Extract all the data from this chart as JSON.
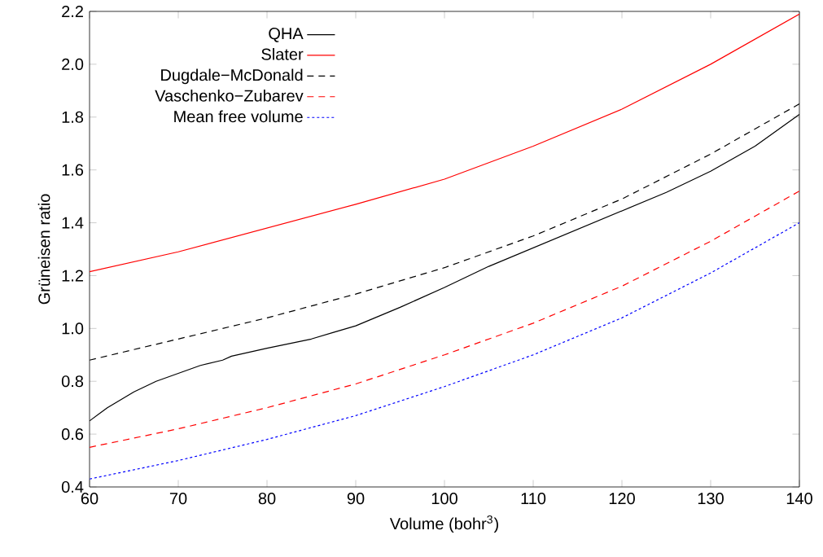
{
  "chart_data": {
    "type": "line",
    "xlabel": "Volume (bohr$^{3}$)",
    "ylabel": "Grüneisen ratio",
    "xlim": [
      60,
      140
    ],
    "ylim": [
      0.4,
      2.2
    ],
    "xticks": [
      60,
      70,
      80,
      90,
      100,
      110,
      120,
      130,
      140
    ],
    "yticks": [
      0.4,
      0.6,
      0.8,
      {
        "value": 1,
        "label": "1.0"
      },
      1.2,
      1.4,
      1.6,
      1.8,
      {
        "value": 2,
        "label": "2.0"
      },
      2.2
    ],
    "legend": "top left",
    "grid": false,
    "marker": "none",
    "series": [
      {
        "name": "QHA",
        "color": "#000000",
        "line_style": "solid",
        "x": [
          60,
          62,
          65,
          67.5,
          70,
          72.5,
          75,
          76,
          80,
          85,
          87.5,
          90,
          95,
          100,
          105,
          110,
          115,
          120,
          125,
          130,
          135,
          140
        ],
        "values": [
          0.65,
          0.7,
          0.76,
          0.8,
          0.83,
          0.86,
          0.88,
          0.895,
          0.925,
          0.96,
          0.985,
          1.01,
          1.08,
          1.155,
          1.235,
          1.305,
          1.375,
          1.445,
          1.515,
          1.595,
          1.69,
          1.81
        ]
      },
      {
        "name": "Slater",
        "color": "#ff0000",
        "line_style": "solid",
        "x": [
          60,
          70,
          80,
          90,
          100,
          110,
          120,
          130,
          140
        ],
        "values": [
          1.215,
          1.29,
          1.38,
          1.47,
          1.565,
          1.69,
          1.83,
          2.0,
          2.19
        ]
      },
      {
        "name": "Dugdale−McDonald",
        "color": "#000000",
        "line_style": "dashed",
        "x": [
          60,
          70,
          80,
          90,
          100,
          110,
          120,
          130,
          140
        ],
        "values": [
          0.88,
          0.96,
          1.04,
          1.13,
          1.23,
          1.35,
          1.49,
          1.66,
          1.85
        ]
      },
      {
        "name": "Vaschenko−Zubarev",
        "color": "#ff0000",
        "line_style": "dashed",
        "x": [
          60,
          70,
          80,
          90,
          100,
          110,
          120,
          130,
          140
        ],
        "values": [
          0.55,
          0.62,
          0.7,
          0.79,
          0.9,
          1.02,
          1.16,
          1.33,
          1.52
        ]
      },
      {
        "name": "Mean free volume",
        "color": "#0000ff",
        "line_style": "dotted",
        "x": [
          60,
          70,
          80,
          90,
          100,
          110,
          120,
          130,
          140
        ],
        "values": [
          0.43,
          0.5,
          0.58,
          0.67,
          0.78,
          0.9,
          1.04,
          1.21,
          1.4
        ]
      }
    ]
  }
}
